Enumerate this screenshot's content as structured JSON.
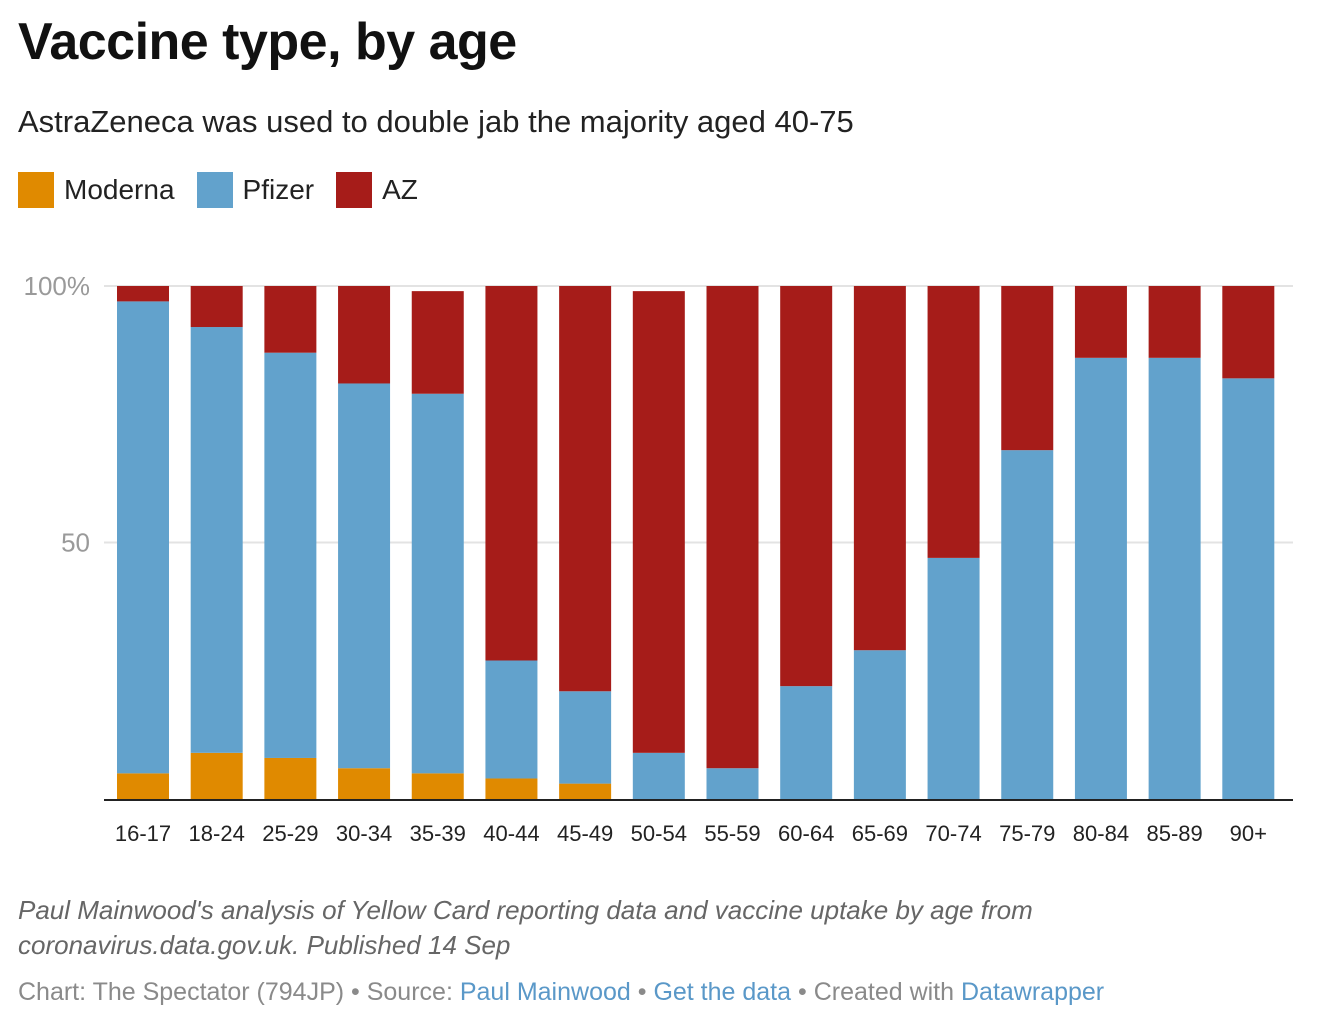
{
  "title": "Vaccine type, by age",
  "subtitle": "AstraZeneca was used to double jab the majority aged 40-75",
  "legend": [
    {
      "label": "Moderna",
      "color": "#e08a00"
    },
    {
      "label": "Pfizer",
      "color": "#62a2cc"
    },
    {
      "label": "AZ",
      "color": "#a61c19"
    }
  ],
  "chart_data": {
    "type": "bar",
    "stacked": true,
    "categories": [
      "16-17",
      "18-24",
      "25-29",
      "30-34",
      "35-39",
      "40-44",
      "45-49",
      "50-54",
      "55-59",
      "60-64",
      "65-69",
      "70-74",
      "75-79",
      "80-84",
      "85-89",
      "90+"
    ],
    "series": [
      {
        "name": "Moderna",
        "color": "#e08a00",
        "values": [
          5,
          9,
          8,
          6,
          5,
          4,
          3,
          0,
          0,
          0,
          0,
          0,
          0,
          0,
          0,
          0
        ]
      },
      {
        "name": "Pfizer",
        "color": "#62a2cc",
        "values": [
          92,
          83,
          79,
          75,
          74,
          23,
          18,
          9,
          6,
          22,
          29,
          47,
          68,
          86,
          86,
          82
        ]
      },
      {
        "name": "AZ",
        "color": "#a61c19",
        "values": [
          3,
          8,
          13,
          19,
          20,
          73,
          79,
          90,
          94,
          78,
          71,
          53,
          32,
          14,
          14,
          18
        ]
      }
    ],
    "ylim": [
      0,
      100
    ],
    "yticks": [
      {
        "value": 100,
        "label": "100%"
      },
      {
        "value": 50,
        "label": "50"
      }
    ],
    "grid": true,
    "legend_position": "top-left"
  },
  "notes": "Paul Mainwood's analysis of Yellow Card reporting data and vaccine uptake by age from coronavirus.data.gov.uk. Published 14 Sep",
  "footer": {
    "prefix": "Chart: The Spectator (794JP) • Source: ",
    "source_link": "Paul Mainwood",
    "sep": " • ",
    "data_link": "Get the data",
    "created": " • Created with ",
    "tool_link": "Datawrapper"
  }
}
